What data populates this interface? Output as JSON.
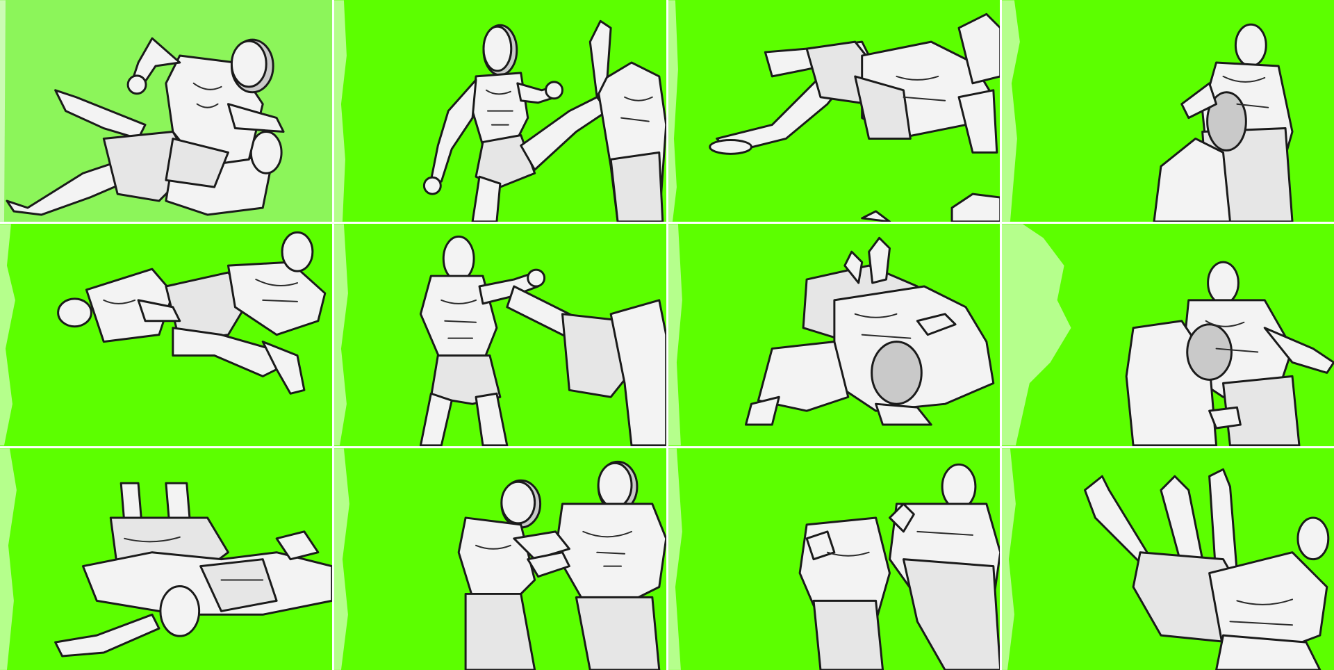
{
  "sheet": {
    "columns": 4,
    "rows": 3,
    "background_color": "#5cff00",
    "light_background_color": "#8cf55a",
    "figure_fill": "#f3f3f3",
    "outline_color": "#1a1a1a",
    "panels": [
      {
        "scene": "ground-mount-punch",
        "icon": "fighters-grappling-icon"
      },
      {
        "scene": "high-kick",
        "icon": "fighter-kick-icon"
      },
      {
        "scene": "ground-guard",
        "icon": "fighters-grappling-icon"
      },
      {
        "scene": "back-clinch",
        "icon": "fighters-clinch-icon"
      },
      {
        "scene": "ground-scramble",
        "icon": "fighters-grappling-icon"
      },
      {
        "scene": "kick-catch",
        "icon": "fighter-kick-icon"
      },
      {
        "scene": "side-control",
        "icon": "fighters-grappling-icon"
      },
      {
        "scene": "body-clinch",
        "icon": "fighters-clinch-icon"
      },
      {
        "scene": "leg-lock",
        "icon": "fighters-grappling-icon"
      },
      {
        "scene": "standing-clinch",
        "icon": "fighters-clinch-icon"
      },
      {
        "scene": "knee-strike",
        "icon": "fighter-knee-icon"
      },
      {
        "scene": "takedown",
        "icon": "fighters-takedown-icon"
      }
    ]
  }
}
